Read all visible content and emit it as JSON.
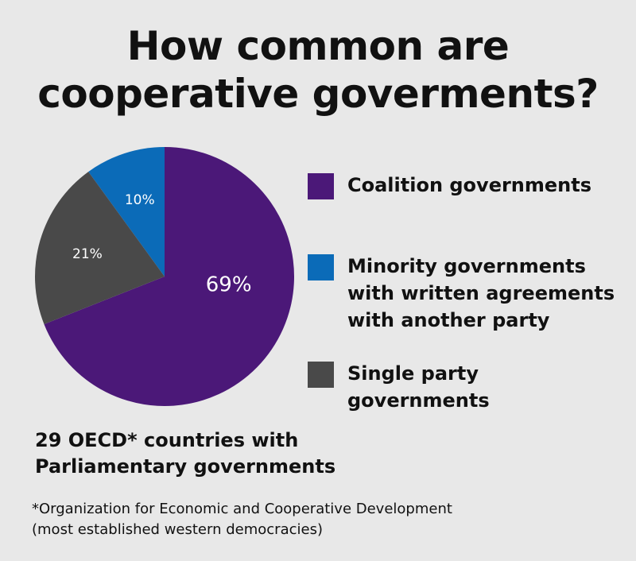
{
  "chart_data": {
    "type": "pie",
    "title": "How common are\ncooperative goverments?",
    "categories": [
      "Coalition governments",
      "Minority governments\nwith written agreements\nwith another party",
      "Single party\ngovernments"
    ],
    "values": [
      69,
      10,
      21
    ],
    "value_labels": [
      "69%",
      "10%",
      "21%"
    ],
    "colors": [
      "#4b1878",
      "#0b6bb8",
      "#494949"
    ],
    "subtitle": "29 OECD* countries with\nParliamentary governments",
    "footnote": "*Organization for Economic and Cooperative Development\n(most established western democracies)"
  }
}
